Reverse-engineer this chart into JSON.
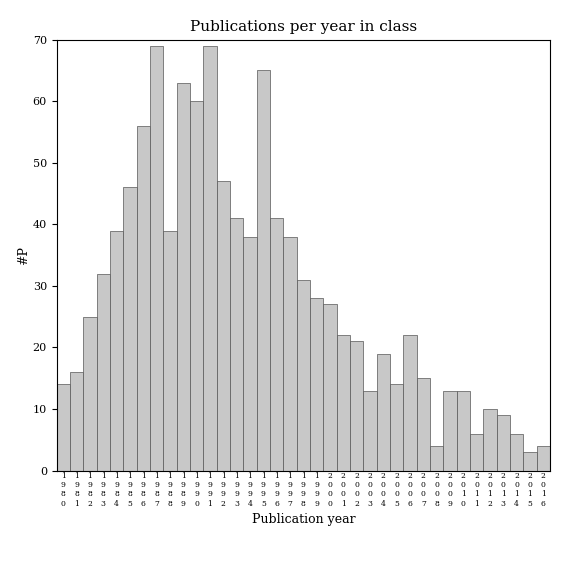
{
  "title": "Publications per year in class",
  "xlabel": "Publication year",
  "ylabel": "#P",
  "bar_color": "#c8c8c8",
  "bar_edge_color": "#555555",
  "background_color": "#ffffff",
  "ylim": [
    0,
    70
  ],
  "yticks": [
    0,
    10,
    20,
    30,
    40,
    50,
    60,
    70
  ],
  "years": [
    "1980",
    "1981",
    "1982",
    "1983",
    "1984",
    "1985",
    "1986",
    "1987",
    "1988",
    "1989",
    "1990",
    "1991",
    "1992",
    "1993",
    "1994",
    "1995",
    "1996",
    "1997",
    "1998",
    "1999",
    "2000",
    "2001",
    "2002",
    "2003",
    "2004",
    "2005",
    "2006",
    "2007",
    "2008",
    "2009",
    "2010",
    "2011",
    "2012",
    "2013",
    "2014",
    "2015",
    "2016"
  ],
  "values": [
    14,
    16,
    25,
    32,
    39,
    46,
    56,
    69,
    39,
    63,
    60,
    69,
    47,
    41,
    38,
    65,
    41,
    38,
    31,
    28,
    27,
    22,
    21,
    13,
    19,
    14,
    22,
    15,
    4,
    13,
    13,
    6,
    10,
    9,
    6,
    3,
    4
  ]
}
